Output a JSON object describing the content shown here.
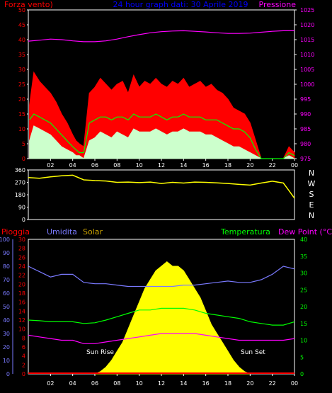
{
  "chart_data": [
    {
      "type": "line",
      "panel": "wind-pressure",
      "title": "24 hour graph dati:  30 Aprile 2019",
      "left_axis_title": "Forza vento)",
      "right_axis_title": "Pressione",
      "ylim_left": [
        0,
        50
      ],
      "left_ticks": [
        "0",
        "5",
        "10",
        "15",
        "20",
        "25",
        "30",
        "35",
        "40",
        "45",
        "50"
      ],
      "ylim_right": [
        975,
        1025
      ],
      "right_ticks": [
        "975",
        "980",
        "985",
        "990",
        "995",
        "1000",
        "1005",
        "1010",
        "1015",
        "1020",
        "1025"
      ],
      "x_ticks": [
        "02",
        "04",
        "06",
        "08",
        "10",
        "12",
        "14",
        "16",
        "18",
        "20",
        "22",
        "00"
      ],
      "xlim_hours": [
        0,
        24
      ],
      "series": [
        {
          "color": "#ff00ff",
          "axis": "right",
          "x": [
            0,
            1,
            2,
            3,
            4,
            5,
            6,
            7,
            8,
            9,
            10,
            11,
            12,
            13,
            14,
            15,
            16,
            17,
            18,
            19,
            20,
            21,
            22,
            23,
            24
          ],
          "values": [
            1014.5,
            1014.8,
            1015.2,
            1015.0,
            1014.6,
            1014.3,
            1014.3,
            1014.6,
            1015.2,
            1016.0,
            1016.7,
            1017.3,
            1017.7,
            1017.9,
            1018.0,
            1017.8,
            1017.6,
            1017.3,
            1017.1,
            1017.1,
            1017.2,
            1017.5,
            1017.8,
            1018.0,
            1018.0
          ]
        },
        {
          "color": "#ff0000",
          "axis": "left",
          "x": [
            0.1,
            0.5,
            1,
            1.5,
            2,
            2.5,
            3,
            3.5,
            4,
            4.3,
            4.6,
            5,
            5.5,
            6,
            6.5,
            7,
            7.5,
            8,
            8.5,
            9,
            9.5,
            10,
            10.5,
            11,
            11.5,
            12,
            12.5,
            13,
            13.5,
            14,
            14.5,
            15,
            15.5,
            16,
            16.5,
            17,
            17.5,
            18,
            18.5,
            19,
            19.5,
            20,
            20.5,
            21,
            22,
            23,
            23.5,
            24
          ],
          "values": [
            18,
            29,
            26,
            24,
            22,
            19,
            15,
            12,
            8,
            6,
            5,
            4,
            22,
            24,
            27,
            25,
            23,
            25,
            26,
            22,
            28,
            24,
            26,
            25,
            27,
            25,
            24,
            26,
            25,
            27,
            24,
            25,
            26,
            24,
            25,
            23,
            22,
            20,
            17,
            16,
            15,
            12,
            6,
            0,
            0,
            0,
            4,
            2
          ]
        },
        {
          "color": "#00ff00",
          "axis": "left",
          "x": [
            0.1,
            0.5,
            1,
            1.5,
            2,
            2.5,
            3,
            3.5,
            4,
            4.3,
            4.6,
            5,
            5.5,
            6,
            6.5,
            7,
            7.5,
            8,
            8.5,
            9,
            9.5,
            10,
            10.5,
            11,
            11.5,
            12,
            12.5,
            13,
            13.5,
            14,
            14.5,
            15,
            15.5,
            16,
            16.5,
            17,
            17.5,
            18,
            18.5,
            19,
            19.5,
            20,
            20.5,
            21,
            22,
            23,
            23.5,
            24
          ],
          "values": [
            13,
            15,
            14,
            13,
            12,
            10,
            8,
            6,
            4,
            3,
            2,
            2,
            12,
            13,
            14,
            14,
            13,
            14,
            14,
            13,
            15,
            14,
            14,
            14,
            15,
            14,
            13,
            14,
            14,
            15,
            14,
            14,
            14,
            13,
            13,
            13,
            12,
            11,
            10,
            10,
            9,
            7,
            3,
            0,
            0,
            0,
            2,
            1
          ]
        },
        {
          "color": "#ccffcc",
          "axis": "left",
          "x": [
            0.1,
            0.5,
            1,
            1.5,
            2,
            2.5,
            3,
            3.5,
            4,
            4.3,
            4.6,
            5,
            5.5,
            6,
            6.5,
            7,
            7.5,
            8,
            8.5,
            9,
            9.5,
            10,
            10.5,
            11,
            11.5,
            12,
            12.5,
            13,
            13.5,
            14,
            14.5,
            15,
            15.5,
            16,
            16.5,
            17,
            17.5,
            18,
            18.5,
            19,
            19.5,
            20,
            20.5,
            21,
            22,
            23,
            23.5,
            24
          ],
          "values": [
            6,
            11,
            10,
            9,
            8,
            6,
            4,
            3,
            2,
            1,
            1,
            0,
            6,
            7,
            9,
            8,
            7,
            9,
            8,
            7,
            10,
            9,
            9,
            9,
            10,
            9,
            8,
            9,
            9,
            10,
            9,
            9,
            9,
            8,
            8,
            7,
            6,
            5,
            4,
            4,
            3,
            2,
            1,
            0,
            0,
            0,
            1,
            0
          ]
        }
      ]
    },
    {
      "type": "line",
      "panel": "wind-direction",
      "ylim": [
        0,
        360
      ],
      "left_ticks": [
        "0",
        "90",
        "180",
        "270",
        "360"
      ],
      "direction_labels": [
        "N",
        "W",
        "S",
        "E",
        "N"
      ],
      "xlim_hours": [
        0,
        24
      ],
      "series": [
        {
          "color": "#ffff00",
          "x": [
            0,
            1,
            2,
            3,
            4,
            5,
            6,
            7,
            8,
            9,
            10,
            11,
            12,
            13,
            14,
            15,
            16,
            17,
            18,
            19,
            20,
            21,
            22,
            23,
            23.5,
            24
          ],
          "values": [
            305,
            300,
            310,
            318,
            322,
            288,
            283,
            280,
            270,
            272,
            268,
            272,
            262,
            270,
            265,
            272,
            270,
            266,
            262,
            255,
            250,
            265,
            278,
            265,
            210,
            155
          ]
        }
      ]
    },
    {
      "type": "line",
      "panel": "rain-humidity-solar-temperature",
      "labels": {
        "rain": "Pioggia",
        "humidity": "Umidita",
        "solar": "Solar",
        "temperature": "Temperatura",
        "dewpoint": "Dew Point (°C)"
      },
      "annotations": [
        "Sun Rise",
        "Sun Set"
      ],
      "humidity_ylim": [
        0,
        100
      ],
      "humidity_ticks": [
        "0",
        "10",
        "20",
        "30",
        "40",
        "50",
        "60",
        "70",
        "80",
        "90",
        "100"
      ],
      "rain_ylim": [
        0,
        30
      ],
      "rain_ticks": [
        "0",
        "2",
        "4",
        "6",
        "8",
        "10",
        "12",
        "14",
        "16",
        "18",
        "20",
        "22",
        "24",
        "26",
        "28",
        "30"
      ],
      "temperature_ylim": [
        0,
        40
      ],
      "temperature_ticks": [
        "0",
        "5",
        "10",
        "15",
        "20",
        "25",
        "30",
        "35",
        "40"
      ],
      "x_ticks": [
        "02",
        "04",
        "06",
        "08",
        "10",
        "12",
        "14",
        "16",
        "18",
        "20",
        "22",
        "00"
      ],
      "xlim_hours": [
        0,
        24
      ],
      "series": [
        {
          "color": "#7a7aff",
          "axis": "humidity",
          "x": [
            0,
            1,
            2,
            3,
            4,
            5,
            6,
            7,
            8,
            9,
            10,
            11,
            12,
            13,
            14,
            15,
            16,
            17,
            18,
            19,
            20,
            21,
            22,
            23,
            24
          ],
          "values": [
            80,
            76,
            72,
            74,
            74,
            68,
            67,
            67,
            66,
            65,
            65,
            65,
            65,
            65,
            66,
            66,
            67,
            68,
            69,
            68,
            68,
            70,
            74,
            80,
            78
          ]
        },
        {
          "color": "#00ff00",
          "axis": "temperature",
          "x": [
            0,
            1,
            2,
            3,
            4,
            5,
            6,
            7,
            8,
            9,
            10,
            11,
            12,
            13,
            14,
            15,
            16,
            17,
            18,
            19,
            20,
            21,
            22,
            23,
            24
          ],
          "values": [
            16,
            15.8,
            15.5,
            15.5,
            15.5,
            15,
            15.2,
            16,
            17,
            18,
            19,
            19,
            19.5,
            19.5,
            19.5,
            19,
            18,
            17.5,
            17,
            16.5,
            15.5,
            15,
            14.5,
            14.5,
            15.5
          ]
        },
        {
          "color": "#ff00ff",
          "axis": "temperature",
          "x": [
            0,
            1,
            2,
            3,
            4,
            5,
            6,
            7,
            8,
            9,
            10,
            11,
            12,
            13,
            14,
            15,
            16,
            17,
            18,
            19,
            20,
            21,
            22,
            23,
            24
          ],
          "values": [
            11.5,
            11,
            10.5,
            10,
            10,
            9,
            9,
            9.5,
            10,
            10.5,
            11,
            11.5,
            12,
            12,
            12,
            12,
            11.5,
            11,
            10.5,
            10,
            10,
            10,
            10,
            10,
            10.5
          ]
        },
        {
          "color": "#ffff00",
          "axis": "rain",
          "x": [
            6,
            6.5,
            7,
            7.5,
            8,
            8.5,
            9,
            9.5,
            10,
            10.5,
            11,
            11.5,
            12,
            12.5,
            13,
            13.5,
            14,
            14.5,
            15,
            15.5,
            16,
            16.5,
            17,
            17.5,
            18,
            18.5,
            19,
            19.5,
            20
          ],
          "values": [
            0,
            0.5,
            1.5,
            3,
            5,
            7,
            10,
            13,
            16,
            19,
            21,
            23,
            24,
            25,
            24,
            24,
            23,
            21,
            19,
            17,
            14,
            11,
            9,
            7,
            5,
            3,
            1.5,
            0.5,
            0
          ]
        },
        {
          "color": "#ff0000",
          "axis": "rain",
          "x": [
            0,
            24
          ],
          "values": [
            0,
            0
          ]
        }
      ]
    }
  ]
}
